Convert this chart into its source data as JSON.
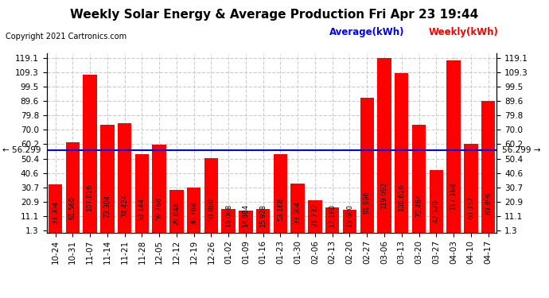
{
  "title": "Weekly Solar Energy & Average Production Fri Apr 23 19:44",
  "copyright": "Copyright 2021 Cartronics.com",
  "average_label": "Average(kWh)",
  "weekly_label": "Weekly(kWh)",
  "average_value": 56.299,
  "categories": [
    "10-24",
    "10-31",
    "11-07",
    "11-14",
    "11-21",
    "11-28",
    "12-05",
    "12-12",
    "12-19",
    "12-26",
    "01-02",
    "01-09",
    "01-16",
    "01-23",
    "01-30",
    "02-06",
    "02-13",
    "02-20",
    "02-27",
    "03-06",
    "03-13",
    "03-20",
    "03-27",
    "04-03",
    "04-10",
    "04-17"
  ],
  "values": [
    33.004,
    61.56,
    107.816,
    73.304,
    74.424,
    53.144,
    59.768,
    29.048,
    30.768,
    50.88,
    16.068,
    14.884,
    15.928,
    53.168,
    33.504,
    21.732,
    17.18,
    15.6,
    91.996,
    119.092,
    108.616,
    73.464,
    42.52,
    117.168,
    60.332,
    89.896
  ],
  "bar_color": "#ff0000",
  "line_color": "#0000ff",
  "background_color": "#ffffff",
  "grid_color": "#cccccc",
  "ytick_values": [
    1.3,
    11.1,
    20.9,
    30.7,
    40.6,
    50.4,
    60.2,
    70.0,
    79.8,
    89.6,
    99.5,
    109.3,
    119.1
  ],
  "ylim": [
    0,
    122
  ],
  "title_fontsize": 11,
  "copyright_fontsize": 7,
  "bar_label_fontsize": 6,
  "tick_fontsize": 7.5,
  "legend_fontsize": 8.5
}
